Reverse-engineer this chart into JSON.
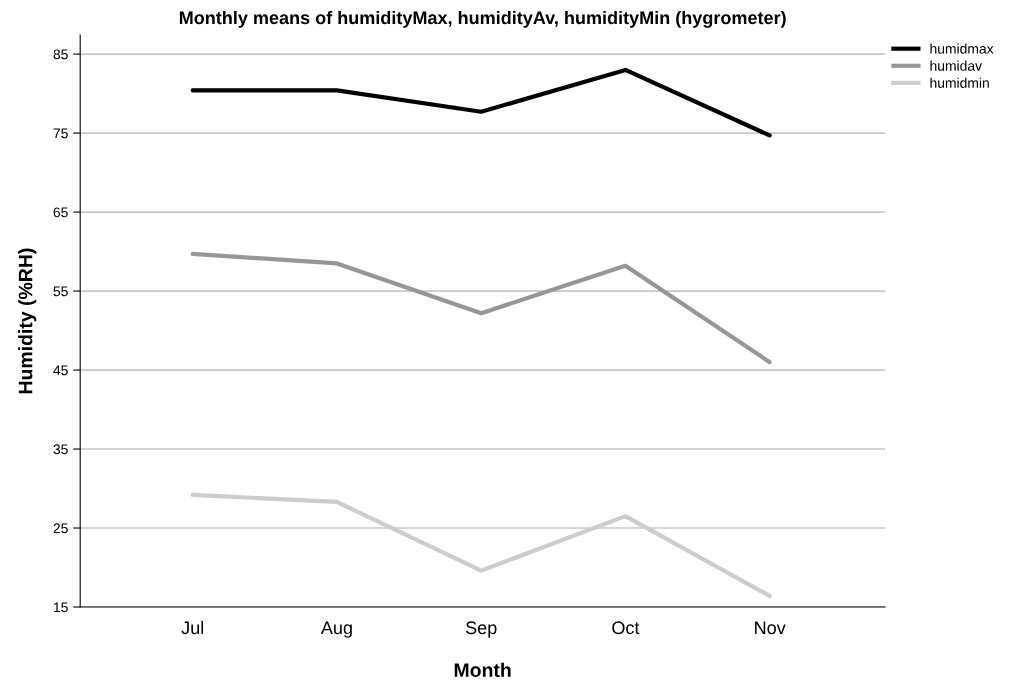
{
  "chart_data": {
    "type": "line",
    "title": "Monthly means of humidityMax, humidityAv, humidityMin (hygrometer)",
    "xlabel": "Month",
    "ylabel": "Humidity (%RH)",
    "categories": [
      "Jul",
      "Aug",
      "Sep",
      "Oct",
      "Nov"
    ],
    "series": [
      {
        "name": "humidmax",
        "color": "#000000",
        "values": [
          80.4,
          80.4,
          77.7,
          83.0,
          74.7
        ]
      },
      {
        "name": "humidav",
        "color": "#969696",
        "values": [
          59.7,
          58.5,
          52.2,
          58.2,
          46.0
        ]
      },
      {
        "name": "humidmin",
        "color": "#cccccc",
        "values": [
          29.2,
          28.3,
          19.6,
          26.5,
          16.4
        ]
      }
    ],
    "ylim": [
      15,
      87.4
    ],
    "yticks": [
      15,
      25,
      35,
      45,
      55,
      65,
      75,
      85
    ],
    "grid": "y",
    "legend": "top right",
    "marker": "none",
    "line_style": "solid"
  }
}
